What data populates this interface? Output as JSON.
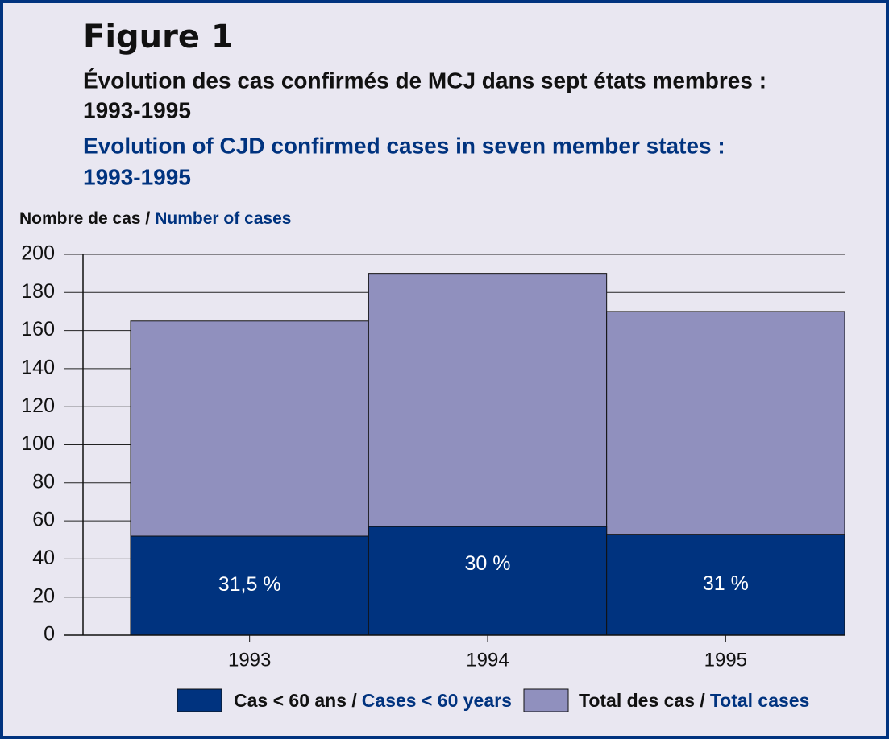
{
  "chart_data": {
    "type": "bar",
    "overlap": true,
    "title": "Figure 1",
    "subtitle_fr": [
      "Évolution des cas confirmés de MCJ dans sept états membres :",
      "1993-1995"
    ],
    "subtitle_en": [
      "Evolution of CJD confirmed cases in seven member states :",
      "1993-1995"
    ],
    "y_label": [
      "Nombre de cas /",
      "Number of cases"
    ],
    "categories": [
      "1993",
      "1994",
      "1995"
    ],
    "series": [
      {
        "name": "Total des cas /",
        "name_en": "Total cases",
        "color": "#9090be",
        "values": [
          165,
          190,
          170
        ]
      },
      {
        "name": "Cas < 60 ans /",
        "name_en": "Cases < 60 years",
        "color": "#00337f",
        "values": [
          52,
          57,
          53
        ]
      }
    ],
    "bar_labels": [
      "31,5 %",
      "30 %",
      "31 %"
    ],
    "ylim": [
      0,
      200
    ],
    "yticks": [
      0,
      20,
      40,
      60,
      80,
      100,
      120,
      140,
      160,
      180,
      200
    ],
    "grid": true
  }
}
